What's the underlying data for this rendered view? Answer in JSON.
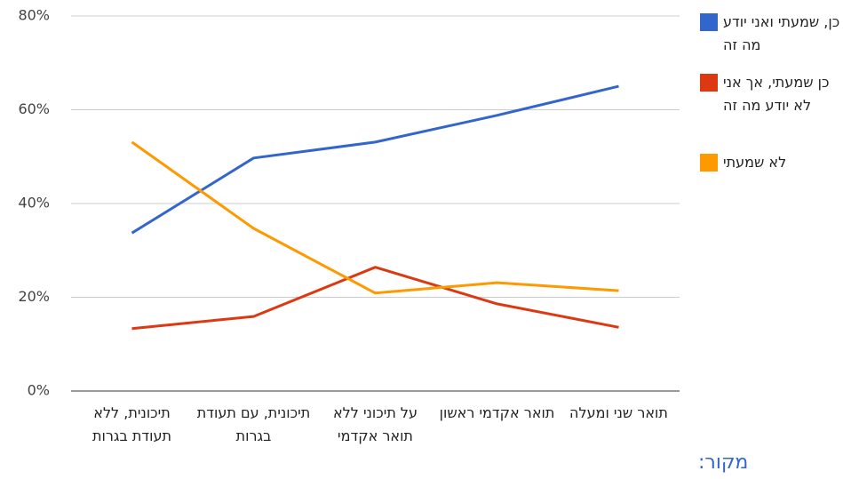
{
  "chart_data": {
    "type": "line",
    "categories": [
      "תיכונית, ללא תעודת בגרות",
      "תיכונית, עם תעודת בגרות",
      "על תיכוני ללא תואר אקדמי",
      "תואר אקדמי ראשון",
      "תואר שני ומעלה"
    ],
    "series": [
      {
        "name": "כן, שמעתי ואני יודע מה זה",
        "color": "#3366cc",
        "values": [
          33.7,
          49.7,
          53.1,
          58.8,
          65
        ]
      },
      {
        "name": "כן שמעתי, אך אני לא יודע מה זה",
        "color": "#dc3912",
        "values": [
          13.3,
          15.9,
          26.4,
          18.6,
          13.6
        ]
      },
      {
        "name": "לא שמעתי",
        "color": "#ff9900",
        "values": [
          53.1,
          34.7,
          20.9,
          23.1,
          21.4
        ]
      }
    ],
    "ylim": [
      0,
      80
    ],
    "yticks": [
      {
        "value": 0,
        "label": "0%"
      },
      {
        "value": 20,
        "label": "20%"
      },
      {
        "value": 40,
        "label": "40%"
      },
      {
        "value": 60,
        "label": "60%"
      },
      {
        "value": 80,
        "label": "80%"
      }
    ],
    "grid": true,
    "legend": "right",
    "source": "מקור:"
  }
}
